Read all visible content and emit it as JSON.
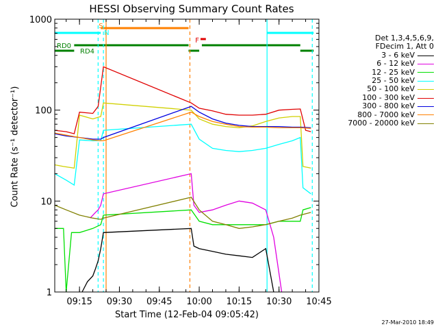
{
  "title": "HESSI Observing Summary Count Rates",
  "xlabel": "Start Time (12-Feb-04 09:05:42)",
  "ylabel": "Count Rate (s⁻¹ detector⁻¹)",
  "timestamp": "27-Mar-2010 18:49",
  "legend": {
    "header_line1": "Det 1,3,4,5,6,9,",
    "header_line2": "FDecim 1, Att 0",
    "items": [
      {
        "label": "3 - 6 keV",
        "color": "#000000"
      },
      {
        "label": "6 - 12 keV",
        "color": "#e000e0"
      },
      {
        "label": "12 - 25 keV",
        "color": "#00e000"
      },
      {
        "label": "25 - 50 keV",
        "color": "#00ffff"
      },
      {
        "label": "50 - 100 keV",
        "color": "#d0d000"
      },
      {
        "label": "100 - 300 keV",
        "color": "#e00000"
      },
      {
        "label": "300 - 800 keV",
        "color": "#0000e0"
      },
      {
        "label": "800 - 7000 keV",
        "color": "#ff8000"
      },
      {
        "label": "7000 - 20000 keV",
        "color": "#808000"
      }
    ]
  },
  "annotations": {
    "saa": "S",
    "night": "N",
    "flare": "F",
    "rd0": "RD0",
    "rd4": "RD4"
  },
  "chart_data": {
    "type": "line",
    "yscale": "log",
    "ylim": [
      1,
      1000
    ],
    "xlim": [
      "09:05:42",
      "10:45:00"
    ],
    "yticks": [
      1,
      10,
      100,
      1000
    ],
    "ytick_labels": [
      "1",
      "10",
      "100",
      "1000"
    ],
    "xticks": [
      "09:15",
      "09:30",
      "09:45",
      "10:00",
      "10:15",
      "10:30",
      "10:45"
    ],
    "flags": {
      "saa": [
        [
          "09:23:00",
          "09:56:00"
        ]
      ],
      "night": [
        [
          "09:24:00",
          "09:57:30"
        ]
      ],
      "flare": [
        [
          "10:00:30",
          "10:02:30"
        ]
      ],
      "attenuator_or_decimation_top": [
        [
          "09:05:42",
          "09:23:00"
        ],
        [
          "10:25:30",
          "10:43:00"
        ]
      ],
      "rd0": [
        [
          "09:13:00",
          "09:56:00"
        ],
        [
          "10:01:00",
          "10:38:00"
        ]
      ],
      "rd4": [
        [
          "09:05:42",
          "09:13:00"
        ],
        [
          "09:56:00",
          "10:00:00"
        ],
        [
          "10:38:00",
          "10:43:00"
        ]
      ]
    },
    "vertical_lines": [
      {
        "time": "09:22:00",
        "color": "#00ffff",
        "style": "dashed"
      },
      {
        "time": "09:24:00",
        "color": "#00ffff",
        "style": "dashed"
      },
      {
        "time": "09:25:00",
        "color": "#ff8000",
        "style": "solid"
      },
      {
        "time": "09:56:30",
        "color": "#ff8000",
        "style": "dashed"
      },
      {
        "time": "10:25:30",
        "color": "#00ffff",
        "style": "solid"
      },
      {
        "time": "10:42:30",
        "color": "#00ffff",
        "style": "dashed"
      }
    ],
    "series": [
      {
        "name": "3 - 6 keV",
        "color": "#000000",
        "x": [
          "09:16",
          "09:18",
          "09:20",
          "09:21",
          "09:22",
          "09:23",
          "09:24",
          "09:57",
          "09:58",
          "10:00",
          "10:05",
          "10:10",
          "10:15",
          "10:20",
          "10:25",
          "10:28"
        ],
        "y": [
          1,
          1.3,
          1.5,
          1.8,
          2.2,
          3.0,
          4.5,
          5,
          3.2,
          3.0,
          2.8,
          2.6,
          2.5,
          2.4,
          3.0,
          1
        ]
      },
      {
        "name": "6 - 12 keV",
        "color": "#e000e0",
        "x": [
          "09:19",
          "09:21",
          "09:22",
          "09:23",
          "09:24",
          "09:57",
          "09:58",
          "10:00",
          "10:05",
          "10:10",
          "10:15",
          "10:20",
          "10:25",
          "10:28",
          "10:31"
        ],
        "y": [
          6.5,
          7.5,
          8,
          9,
          12,
          20,
          9,
          7.5,
          8,
          9,
          10,
          9.5,
          8,
          4,
          1
        ]
      },
      {
        "name": "12 - 25 keV",
        "color": "#00e000",
        "x": [
          "09:05:42",
          "09:09",
          "09:10",
          "09:12",
          "09:15",
          "09:20",
          "09:23",
          "09:24",
          "09:57",
          "10:00",
          "10:05",
          "10:10",
          "10:15",
          "10:20",
          "10:25",
          "10:30",
          "10:35",
          "10:38",
          "10:39",
          "10:42"
        ],
        "y": [
          5,
          5,
          1,
          4.5,
          4.5,
          5,
          5.5,
          7,
          8,
          6,
          5.5,
          5.5,
          5.5,
          5.5,
          5.5,
          6,
          6,
          6,
          8,
          8.5
        ]
      },
      {
        "name": "25 - 50 keV",
        "color": "#00ffff",
        "x": [
          "09:05:42",
          "09:10",
          "09:13",
          "09:15",
          "09:20",
          "09:23",
          "09:24",
          "09:57",
          "10:00",
          "10:05",
          "10:10",
          "10:15",
          "10:20",
          "10:25",
          "10:30",
          "10:35",
          "10:38",
          "10:39",
          "10:42"
        ],
        "y": [
          20,
          17,
          15,
          47,
          46,
          46,
          60,
          70,
          48,
          38,
          36,
          35,
          36,
          38,
          42,
          46,
          50,
          14,
          12
        ]
      },
      {
        "name": "50 - 100 keV",
        "color": "#d0d000",
        "x": [
          "09:05:42",
          "09:09",
          "09:13",
          "09:15",
          "09:20",
          "09:23",
          "09:24",
          "09:57",
          "10:00",
          "10:05",
          "10:10",
          "10:15",
          "10:20",
          "10:25",
          "10:30",
          "10:35",
          "10:38",
          "10:39",
          "10:42"
        ],
        "y": [
          25,
          24,
          23,
          88,
          80,
          85,
          120,
          100,
          80,
          70,
          66,
          64,
          67,
          75,
          82,
          85,
          85,
          24,
          23
        ]
      },
      {
        "name": "100 - 300 keV",
        "color": "#e00000",
        "x": [
          "09:05:42",
          "09:10",
          "09:13",
          "09:15",
          "09:20",
          "09:22",
          "09:23",
          "09:24",
          "09:57",
          "10:00",
          "10:05",
          "10:10",
          "10:15",
          "10:20",
          "10:25",
          "10:30",
          "10:35",
          "10:38",
          "10:40",
          "10:42"
        ],
        "y": [
          60,
          58,
          55,
          95,
          92,
          110,
          180,
          300,
          120,
          105,
          98,
          90,
          88,
          88,
          90,
          100,
          102,
          103,
          60,
          58
        ]
      },
      {
        "name": "300 - 800 keV",
        "color": "#0000e0",
        "x": [
          "09:05:42",
          "09:10",
          "09:15",
          "09:20",
          "09:23",
          "09:24",
          "09:57",
          "10:00",
          "10:05",
          "10:10",
          "10:15",
          "10:20",
          "10:25",
          "10:30",
          "10:35",
          "10:38",
          "10:42"
        ],
        "y": [
          55,
          52,
          50,
          48,
          48,
          50,
          110,
          95,
          80,
          72,
          68,
          66,
          66,
          66,
          65,
          65,
          64
        ]
      },
      {
        "name": "800 - 7000 keV",
        "color": "#ff8000",
        "x": [
          "09:05:42",
          "09:10",
          "09:15",
          "09:20",
          "09:23",
          "09:24",
          "09:57",
          "10:00",
          "10:05",
          "10:10",
          "10:15",
          "10:20",
          "10:25",
          "10:30",
          "10:35",
          "10:38",
          "10:42"
        ],
        "y": [
          56,
          53,
          50,
          47,
          46,
          46,
          95,
          85,
          75,
          70,
          66,
          65,
          65,
          64,
          64,
          64,
          63
        ]
      },
      {
        "name": "7000 - 20000 keV",
        "color": "#808000",
        "x": [
          "09:05:42",
          "09:10",
          "09:15",
          "09:20",
          "09:23",
          "09:24",
          "09:57",
          "10:00",
          "10:05",
          "10:10",
          "10:15",
          "10:20",
          "10:25",
          "10:30",
          "10:35",
          "10:38",
          "10:42"
        ],
        "y": [
          9,
          8,
          7,
          6.5,
          6.3,
          6.5,
          11,
          8,
          6,
          5.5,
          5,
          5.2,
          5.5,
          6,
          6.5,
          7,
          7.5
        ]
      }
    ]
  }
}
